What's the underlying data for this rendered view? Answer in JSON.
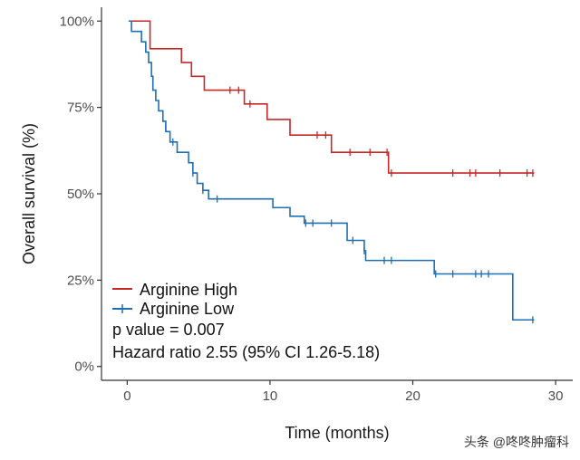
{
  "chart_data": {
    "type": "line",
    "subtype": "kaplan-meier",
    "title": "",
    "xlabel": "Time (months)",
    "ylabel": "Overall survival (%)",
    "xlim": [
      -1.8,
      31.2
    ],
    "ylim": [
      -4,
      104
    ],
    "x_ticks": [
      0,
      10,
      20,
      30
    ],
    "x_tick_labels": [
      "0",
      "10",
      "20",
      "30"
    ],
    "y_ticks": [
      0,
      25,
      50,
      75,
      100
    ],
    "y_tick_labels": [
      "0%",
      "25%",
      "50%",
      "75%",
      "100%"
    ],
    "grid": false,
    "legend_position": "bottom-left",
    "series": [
      {
        "name": "Arginine High",
        "color": "#c62828",
        "steps": [
          [
            0.1,
            100
          ],
          [
            1.6,
            92
          ],
          [
            3.8,
            88
          ],
          [
            4.5,
            84
          ],
          [
            5.4,
            80
          ],
          [
            8.2,
            76
          ],
          [
            9.8,
            71.5
          ],
          [
            11.4,
            67
          ],
          [
            14.3,
            62
          ],
          [
            18.3,
            56
          ],
          [
            28.5,
            56
          ]
        ],
        "censored": [
          [
            7.2,
            80
          ],
          [
            7.8,
            80
          ],
          [
            8.6,
            76
          ],
          [
            13.3,
            67
          ],
          [
            13.9,
            67
          ],
          [
            15.6,
            62
          ],
          [
            17.0,
            62
          ],
          [
            18.2,
            62
          ],
          [
            18.5,
            56
          ],
          [
            22.8,
            56
          ],
          [
            24.0,
            56
          ],
          [
            24.4,
            56
          ],
          [
            26.1,
            56
          ],
          [
            28.0,
            56
          ],
          [
            28.4,
            56
          ]
        ]
      },
      {
        "name": "Arginine Low",
        "color": "#1f6fb4",
        "steps": [
          [
            0.1,
            100
          ],
          [
            0.3,
            97
          ],
          [
            1.0,
            94
          ],
          [
            1.3,
            91
          ],
          [
            1.5,
            88
          ],
          [
            1.7,
            84
          ],
          [
            1.8,
            80
          ],
          [
            2.0,
            77
          ],
          [
            2.2,
            74
          ],
          [
            2.5,
            71
          ],
          [
            2.7,
            68
          ],
          [
            3.0,
            65
          ],
          [
            3.5,
            62
          ],
          [
            4.3,
            59
          ],
          [
            4.6,
            56
          ],
          [
            4.9,
            53
          ],
          [
            5.3,
            51
          ],
          [
            5.7,
            48.5
          ],
          [
            10.2,
            46
          ],
          [
            11.4,
            43.5
          ],
          [
            12.4,
            41.5
          ],
          [
            15.4,
            36.5
          ],
          [
            16.6,
            33.5
          ],
          [
            16.7,
            30.7
          ],
          [
            21.5,
            26.8
          ],
          [
            27.0,
            13.5
          ],
          [
            28.5,
            13.5
          ]
        ],
        "censored": [
          [
            1.8,
            82.5
          ],
          [
            2.7,
            69
          ],
          [
            3.2,
            65
          ],
          [
            4.6,
            56
          ],
          [
            5.3,
            51
          ],
          [
            6.3,
            48.5
          ],
          [
            12.5,
            41.5
          ],
          [
            13.0,
            41.5
          ],
          [
            14.3,
            41.5
          ],
          [
            15.8,
            36.5
          ],
          [
            16.6,
            33.5
          ],
          [
            18.0,
            30.7
          ],
          [
            18.5,
            30.7
          ],
          [
            21.6,
            26.8
          ],
          [
            22.8,
            26.8
          ],
          [
            24.4,
            26.8
          ],
          [
            24.8,
            26.8
          ],
          [
            25.3,
            26.8
          ],
          [
            28.4,
            13.5
          ]
        ]
      }
    ],
    "annotations": [
      "p value = 0.007",
      "Hazard ratio 2.55 (95% CI 1.26-5.18)"
    ]
  },
  "watermark": "头条 @咚咚肿瘤科"
}
